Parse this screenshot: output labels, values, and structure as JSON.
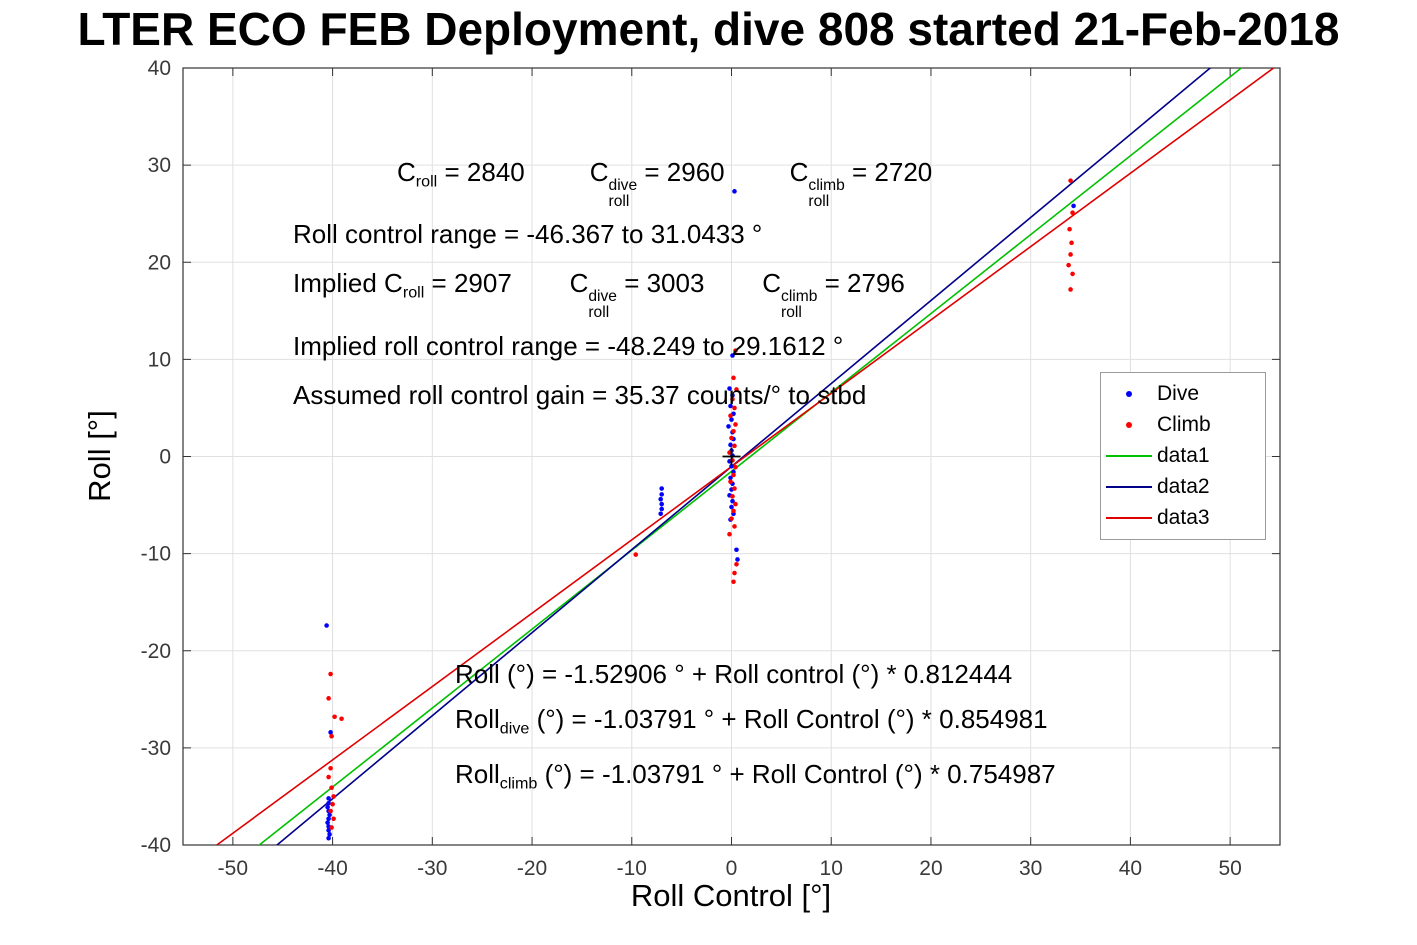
{
  "title": "LTER ECO FEB Deployment, dive 808 started 21-Feb-2018",
  "chart_data": {
    "type": "scatter",
    "title": "LTER ECO FEB Deployment, dive 808 started 21-Feb-2018",
    "xlabel": "Roll Control [°]",
    "ylabel": "Roll [°]",
    "xlim": [
      -55,
      55
    ],
    "ylim": [
      -40,
      40
    ],
    "xticks": [
      -50,
      -40,
      -30,
      -20,
      -10,
      0,
      10,
      20,
      30,
      40,
      50
    ],
    "yticks": [
      -40,
      -30,
      -20,
      -10,
      0,
      10,
      20,
      30,
      40
    ],
    "grid": true,
    "axis_color": "#333333",
    "grid_color": "#e0e0e0",
    "tick_label_color": "#3a3a3a",
    "legend": {
      "position": "right",
      "entries": [
        {
          "label": "Dive",
          "marker": "dot",
          "color": "#0000ff"
        },
        {
          "label": "Climb",
          "marker": "dot",
          "color": "#ff0000"
        },
        {
          "label": "data1",
          "marker": "line",
          "color": "#00c000"
        },
        {
          "label": "data2",
          "marker": "line",
          "color": "#00008b"
        },
        {
          "label": "data3",
          "marker": "line",
          "color": "#e00000"
        }
      ]
    },
    "lines": [
      {
        "name": "data1",
        "color": "#00c000",
        "intercept": -1.52906,
        "slope": 0.812444
      },
      {
        "name": "data2",
        "color": "#00008b",
        "intercept": -1.03791,
        "slope": 0.854981
      },
      {
        "name": "data3",
        "color": "#e00000",
        "intercept": -1.03791,
        "slope": 0.754987
      }
    ],
    "origin_marker": {
      "x": 0,
      "y": 0,
      "color": "#000000",
      "shape": "plus"
    },
    "series": [
      {
        "name": "Dive",
        "color": "#0000ff",
        "points": [
          [
            -40.4,
            -35.2
          ],
          [
            -40.4,
            -35.7
          ],
          [
            -40.5,
            -36.1
          ],
          [
            -40.4,
            -36.5
          ],
          [
            -40.3,
            -36.9
          ],
          [
            -40.4,
            -37.3
          ],
          [
            -40.5,
            -37.7
          ],
          [
            -40.4,
            -38.1
          ],
          [
            -40.4,
            -38.5
          ],
          [
            -40.3,
            -38.9
          ],
          [
            -40.4,
            -39.3
          ],
          [
            -40.6,
            -17.4
          ],
          [
            -40.2,
            -28.4
          ],
          [
            -7.0,
            -3.3
          ],
          [
            -7.0,
            -3.9
          ],
          [
            -7.1,
            -4.4
          ],
          [
            -7.0,
            -4.9
          ],
          [
            -7.0,
            -5.4
          ],
          [
            -7.1,
            -5.9
          ],
          [
            0.3,
            27.3
          ],
          [
            0.1,
            10.4
          ],
          [
            -0.2,
            7.0
          ],
          [
            0.1,
            6.3
          ],
          [
            -0.1,
            5.2
          ],
          [
            0.2,
            4.4
          ],
          [
            0.0,
            3.8
          ],
          [
            -0.3,
            3.1
          ],
          [
            0.1,
            2.5
          ],
          [
            0.2,
            1.8
          ],
          [
            -0.1,
            1.2
          ],
          [
            0.0,
            0.6
          ],
          [
            0.1,
            0.1
          ],
          [
            -0.2,
            -0.5
          ],
          [
            0.0,
            -1.0
          ],
          [
            0.2,
            -1.6
          ],
          [
            -0.1,
            -2.2
          ],
          [
            0.1,
            -2.8
          ],
          [
            0.0,
            -3.4
          ],
          [
            -0.2,
            -4.0
          ],
          [
            0.1,
            -4.6
          ],
          [
            0.0,
            -5.2
          ],
          [
            0.2,
            -5.9
          ],
          [
            -0.1,
            -6.5
          ],
          [
            0.5,
            -9.6
          ],
          [
            0.6,
            -10.6
          ],
          [
            34.3,
            25.8
          ]
        ]
      },
      {
        "name": "Climb",
        "color": "#ff0000",
        "points": [
          [
            -40.2,
            -22.4
          ],
          [
            -40.4,
            -24.9
          ],
          [
            -39.8,
            -26.8
          ],
          [
            -39.1,
            -27.0
          ],
          [
            -40.1,
            -28.8
          ],
          [
            -40.2,
            -32.1
          ],
          [
            -40.4,
            -33.0
          ],
          [
            -40.1,
            -34.1
          ],
          [
            -39.9,
            -35.0
          ],
          [
            -40.0,
            -35.8
          ],
          [
            -40.2,
            -36.5
          ],
          [
            -39.9,
            -37.3
          ],
          [
            -40.1,
            -38.2
          ],
          [
            -9.6,
            -10.1
          ],
          [
            0.4,
            10.9
          ],
          [
            0.2,
            8.1
          ],
          [
            0.5,
            6.9
          ],
          [
            0.1,
            5.9
          ],
          [
            0.3,
            5.0
          ],
          [
            -0.1,
            4.2
          ],
          [
            0.4,
            3.3
          ],
          [
            0.2,
            2.6
          ],
          [
            0.0,
            1.9
          ],
          [
            0.3,
            1.1
          ],
          [
            -0.2,
            0.4
          ],
          [
            0.1,
            -0.4
          ],
          [
            0.4,
            -1.1
          ],
          [
            0.2,
            -1.9
          ],
          [
            -0.1,
            -2.6
          ],
          [
            0.3,
            -3.3
          ],
          [
            0.1,
            -4.1
          ],
          [
            0.4,
            -4.9
          ],
          [
            0.2,
            -5.6
          ],
          [
            0.0,
            -6.4
          ],
          [
            0.3,
            -7.2
          ],
          [
            -0.2,
            -8.0
          ],
          [
            0.5,
            -11.1
          ],
          [
            0.3,
            -12.0
          ],
          [
            0.2,
            -12.9
          ],
          [
            34.0,
            28.4
          ],
          [
            34.2,
            25.1
          ],
          [
            33.9,
            23.4
          ],
          [
            34.1,
            22.0
          ],
          [
            34.0,
            20.8
          ],
          [
            33.8,
            19.7
          ],
          [
            34.2,
            18.8
          ],
          [
            34.0,
            17.2
          ]
        ]
      }
    ]
  },
  "annotations": {
    "top": {
      "lines": [
        {
          "segments": [
            {
              "t": "C",
              "sub": "roll"
            },
            {
              "t": " = 2840         "
            },
            {
              "t": "C",
              "sub": "roll",
              "sup": "dive"
            },
            {
              "t": " = 2960         "
            },
            {
              "t": "C",
              "sub": "roll",
              "sup": "climb"
            },
            {
              "t": " = 2720"
            }
          ]
        },
        {
          "segments": [
            {
              "t": "Roll control range = -46.367 to 31.0433 °"
            }
          ]
        },
        {
          "segments": [
            {
              "t": "Implied C",
              "sub": "roll"
            },
            {
              "t": " = 2907        "
            },
            {
              "t": "C",
              "sub": "roll",
              "sup": "dive"
            },
            {
              "t": " = 3003        "
            },
            {
              "t": "C",
              "sub": "roll",
              "sup": "climb"
            },
            {
              "t": " = 2796"
            }
          ]
        },
        {
          "segments": [
            {
              "t": "Implied roll control range = -48.249 to 29.1612 °"
            }
          ]
        },
        {
          "segments": [
            {
              "t": "Assumed roll control gain = 35.37 counts/° to stbd"
            }
          ]
        }
      ]
    },
    "bottom": {
      "lines": [
        {
          "segments": [
            {
              "t": "Roll (°) = -1.52906 ° + Roll control (°) * 0.812444"
            }
          ]
        },
        {
          "segments": [
            {
              "t": "Roll",
              "sub": "dive"
            },
            {
              "t": " (°) = -1.03791 ° + Roll Control (°) * 0.854981"
            }
          ]
        },
        {
          "segments": [
            {
              "t": "Roll",
              "sub": "climb"
            },
            {
              "t": " (°) = -1.03791 ° + Roll Control (°) * 0.754987"
            }
          ]
        }
      ]
    }
  }
}
